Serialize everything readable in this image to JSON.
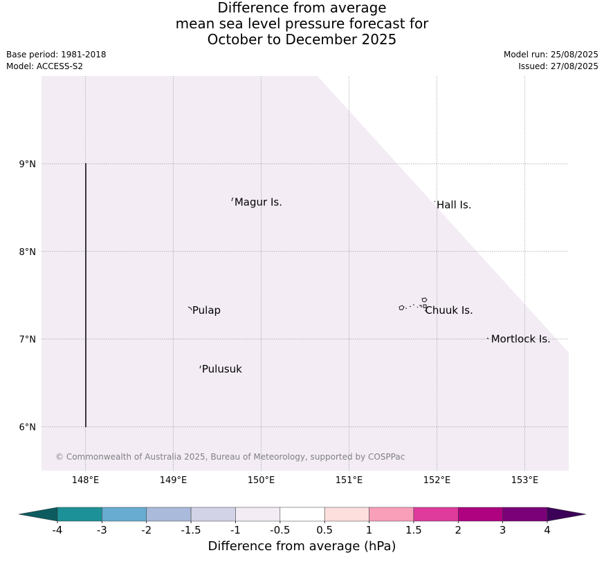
{
  "title": {
    "line1": "Difference from average",
    "line2": "mean sea level pressure forecast for",
    "line3": "October to December 2025"
  },
  "meta": {
    "base_period": "Base period: 1981-2018",
    "model": "Model: ACCESS-S2",
    "model_run": "Model run: 25/08/2025",
    "issued": "Issued: 27/08/2025"
  },
  "map": {
    "lon_range": [
      147.5,
      153.5
    ],
    "lat_range": [
      5.5,
      10.0
    ],
    "fill_color": "#f3ecf5",
    "lon_ticks": [
      {
        "value": 148,
        "label": "148°E"
      },
      {
        "value": 149,
        "label": "149°E"
      },
      {
        "value": 150,
        "label": "150°E"
      },
      {
        "value": 151,
        "label": "151°E"
      },
      {
        "value": 152,
        "label": "152°E"
      },
      {
        "value": 153,
        "label": "153°E"
      }
    ],
    "lat_ticks": [
      {
        "value": 9,
        "label": "9°N"
      },
      {
        "value": 8,
        "label": "8°N"
      },
      {
        "value": 7,
        "label": "7°N"
      },
      {
        "value": 6,
        "label": "6°N"
      }
    ],
    "places": [
      {
        "name": "Magur Is.",
        "lon": 149.68,
        "lat": 8.56
      },
      {
        "name": "Hall Is.",
        "lon": 151.98,
        "lat": 8.53
      },
      {
        "name": "Pulap",
        "lon": 149.2,
        "lat": 7.33
      },
      {
        "name": "Chuuk Is.",
        "lon": 151.85,
        "lat": 7.33
      },
      {
        "name": "Mortlock Is.",
        "lon": 152.6,
        "lat": 7.0
      },
      {
        "name": "Pulusuk",
        "lon": 149.31,
        "lat": 6.66
      }
    ],
    "copyright": "© Commonwealth of Australia 2025, Bureau of Meteorology, supported by COSPPac"
  },
  "colorbar": {
    "label": "Difference from average (hPa)",
    "low_extend_color": "#0d5c5f",
    "high_extend_color": "#3d0058",
    "bins": [
      {
        "from": "-4",
        "to": "-3",
        "color": "#1c9298"
      },
      {
        "from": "-3",
        "to": "-2",
        "color": "#68acd1"
      },
      {
        "from": "-2",
        "to": "-1.5",
        "color": "#a9badb"
      },
      {
        "from": "-1.5",
        "to": "-1",
        "color": "#d2d3e6"
      },
      {
        "from": "-1",
        "to": "-0.5",
        "color": "#f3ecf5"
      },
      {
        "from": "-0.5",
        "to": "0.5",
        "color": "#ffffff"
      },
      {
        "from": "0.5",
        "to": "1",
        "color": "#fde0de"
      },
      {
        "from": "1",
        "to": "1.5",
        "color": "#f99fb9"
      },
      {
        "from": "1.5",
        "to": "2",
        "color": "#de3b9c"
      },
      {
        "from": "2",
        "to": "3",
        "color": "#ae0281"
      },
      {
        "from": "3",
        "to": "4",
        "color": "#7a0178"
      }
    ],
    "tick_labels": [
      "-4",
      "-3",
      "-2",
      "-1.5",
      "-1",
      "-0.5",
      "0.5",
      "1",
      "1.5",
      "2",
      "3",
      "4"
    ]
  }
}
